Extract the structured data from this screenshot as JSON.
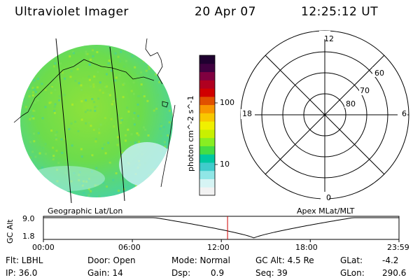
{
  "header": {
    "instrument": "Ultraviolet Imager",
    "date": "20 Apr 07",
    "time": "12:25:12 UT"
  },
  "left_panel": {
    "caption": "Geographic Lat/Lon"
  },
  "right_panel": {
    "caption": "Apex MLat/MLT",
    "mlt_labels": {
      "top": "12",
      "left": "18",
      "right": "6",
      "bottom": "0"
    },
    "lat_labels": [
      "60",
      "70",
      "80"
    ]
  },
  "colorbar": {
    "unit_label": "photon cm^-2 s^-1",
    "ticks": [
      "100",
      "10"
    ],
    "colors": [
      "#f2f2f2",
      "#d6f4f4",
      "#90e6e6",
      "#40cccc",
      "#00c8a0",
      "#44dd44",
      "#88ee22",
      "#c8f000",
      "#f0f000",
      "#f8c800",
      "#f89600",
      "#e05000",
      "#d00000",
      "#b00020",
      "#800040",
      "#400040",
      "#200030"
    ]
  },
  "altitude_plot": {
    "ylabel": "GC Alt",
    "y_ticks": [
      "9.0",
      "1.8"
    ],
    "x_ticks": [
      "00:00",
      "06:00",
      "12:00",
      "18:00",
      "23:59"
    ],
    "current_time_hours": 12.42
  },
  "status": {
    "flt": "Flt: LBHL",
    "ip": "IP: 36.0",
    "door": "Door: Open",
    "gain": "Gain: 14",
    "mode": "Mode: Normal",
    "dsp_label": "Dsp:",
    "dsp_value": "0.9",
    "gcalt": "GC Alt: 4.5 Re",
    "seq": "Seq: 39",
    "glat_label": "GLat:",
    "glat_value": "-4.2",
    "glon_label": "GLon:",
    "glon_value": "290.6"
  }
}
